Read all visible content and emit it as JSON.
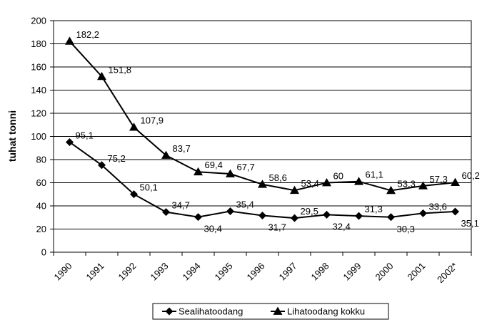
{
  "chart_data": {
    "type": "line",
    "title": "",
    "xlabel": "",
    "ylabel": "tuhat tonni",
    "ylim": [
      0,
      200
    ],
    "yticks": [
      0,
      20,
      40,
      60,
      80,
      100,
      120,
      140,
      160,
      180,
      200
    ],
    "categories": [
      "1990",
      "1991",
      "1992",
      "1993",
      "1994",
      "1995",
      "1996",
      "1997",
      "1998",
      "1999",
      "2000",
      "2001",
      "2002*"
    ],
    "grid": "horizontal",
    "legend_position": "bottom",
    "series": [
      {
        "name": "Sealihatoodang",
        "marker": "diamond",
        "color": "#000000",
        "values": [
          95.1,
          75.2,
          50.1,
          34.7,
          30.4,
          35.4,
          31.7,
          29.5,
          32.4,
          31.3,
          30.3,
          33.6,
          35.1
        ],
        "labels": [
          "95,1",
          "75,2",
          "50,1",
          "34,7",
          "30,4",
          "35,4",
          "31,7",
          "29,5",
          "32,4",
          "31,3",
          "30,3",
          "33,6",
          "35,1"
        ]
      },
      {
        "name": "Lihatoodang kokku",
        "marker": "triangle",
        "color": "#000000",
        "values": [
          182.2,
          151.8,
          107.9,
          83.7,
          69.4,
          67.7,
          58.6,
          53.4,
          60,
          61.1,
          53.3,
          57.3,
          60.2
        ],
        "labels": [
          "182,2",
          "151,8",
          "107,9",
          "83,7",
          "69,4",
          "67,7",
          "58,6",
          "53,4",
          "60",
          "61,1",
          "53,3",
          "57,3",
          "60,2"
        ]
      }
    ]
  }
}
